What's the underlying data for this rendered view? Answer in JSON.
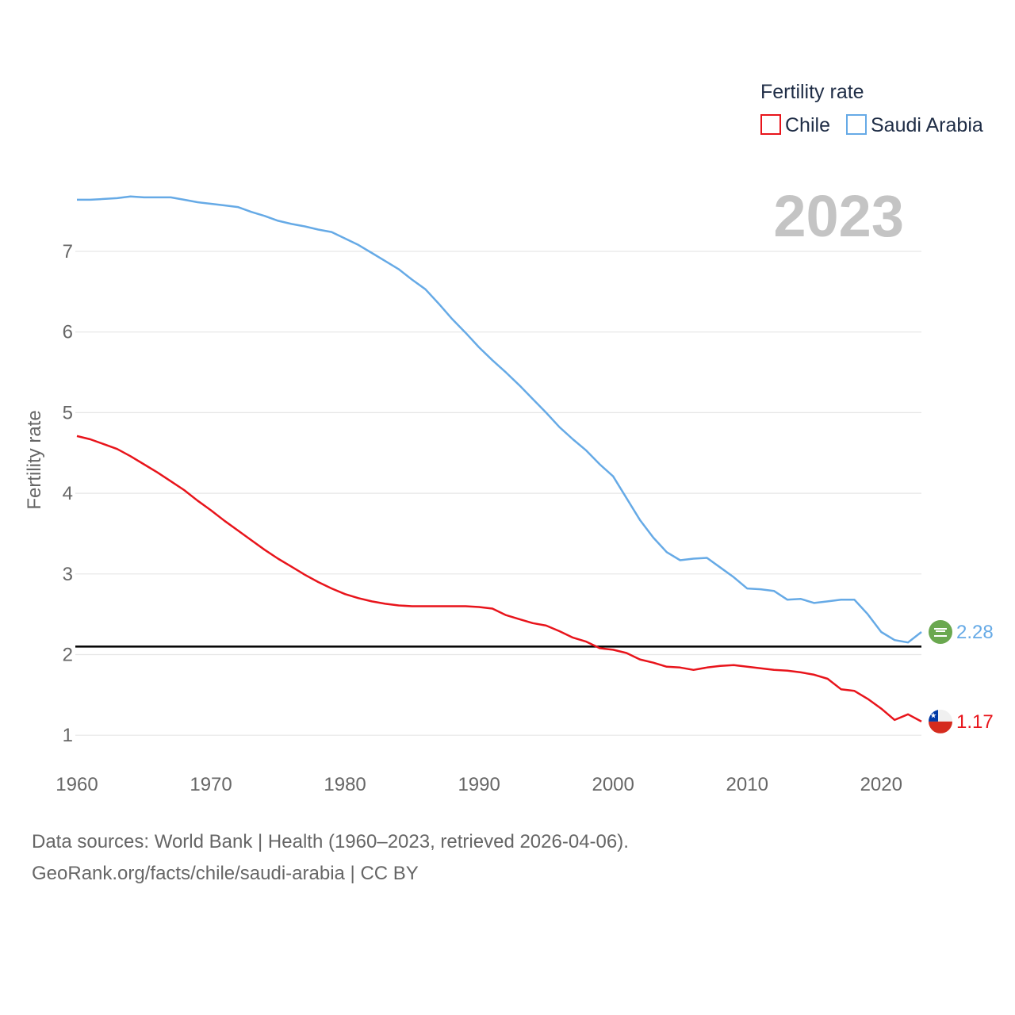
{
  "chart_data": {
    "type": "line",
    "year_label": "2023",
    "ylabel": "Fertility rate",
    "legend_title": "Fertility rate",
    "legend_position": "top-right",
    "xlim": [
      1960,
      2023
    ],
    "ylim": [
      0.6,
      8.0
    ],
    "x_ticks": [
      1960,
      1970,
      1980,
      1990,
      2000,
      2010,
      2020
    ],
    "y_ticks": [
      1,
      2,
      3,
      4,
      5,
      6,
      7
    ],
    "grid": true,
    "reference_line": 2.1,
    "x": [
      1960,
      1961,
      1962,
      1963,
      1964,
      1965,
      1966,
      1967,
      1968,
      1969,
      1970,
      1971,
      1972,
      1973,
      1974,
      1975,
      1976,
      1977,
      1978,
      1979,
      1980,
      1981,
      1982,
      1983,
      1984,
      1985,
      1986,
      1987,
      1988,
      1989,
      1990,
      1991,
      1992,
      1993,
      1994,
      1995,
      1996,
      1997,
      1998,
      1999,
      2000,
      2001,
      2002,
      2003,
      2004,
      2005,
      2006,
      2007,
      2008,
      2009,
      2010,
      2011,
      2012,
      2013,
      2014,
      2015,
      2016,
      2017,
      2018,
      2019,
      2020,
      2021,
      2022,
      2023
    ],
    "series": [
      {
        "name": "Chile",
        "color": "#e8141b",
        "end_value": "1.17",
        "values": [
          4.71,
          4.67,
          4.61,
          4.55,
          4.46,
          4.36,
          4.26,
          4.15,
          4.04,
          3.91,
          3.79,
          3.66,
          3.54,
          3.42,
          3.3,
          3.19,
          3.09,
          2.99,
          2.9,
          2.82,
          2.75,
          2.7,
          2.66,
          2.63,
          2.61,
          2.6,
          2.6,
          2.6,
          2.6,
          2.6,
          2.59,
          2.57,
          2.49,
          2.44,
          2.39,
          2.36,
          2.29,
          2.21,
          2.16,
          2.08,
          2.06,
          2.02,
          1.94,
          1.9,
          1.85,
          1.84,
          1.81,
          1.84,
          1.86,
          1.87,
          1.85,
          1.83,
          1.81,
          1.8,
          1.78,
          1.75,
          1.7,
          1.57,
          1.55,
          1.45,
          1.33,
          1.19,
          1.26,
          1.17
        ]
      },
      {
        "name": "Saudi Arabia",
        "color": "#66aae6",
        "end_value": "2.28",
        "values": [
          7.64,
          7.64,
          7.65,
          7.66,
          7.68,
          7.67,
          7.67,
          7.67,
          7.64,
          7.61,
          7.59,
          7.57,
          7.55,
          7.49,
          7.44,
          7.38,
          7.34,
          7.31,
          7.27,
          7.24,
          7.16,
          7.08,
          6.98,
          6.88,
          6.78,
          6.65,
          6.53,
          6.35,
          6.16,
          5.99,
          5.81,
          5.65,
          5.5,
          5.34,
          5.17,
          5.0,
          4.82,
          4.67,
          4.53,
          4.36,
          4.21,
          3.94,
          3.67,
          3.45,
          3.27,
          3.17,
          3.19,
          3.2,
          3.08,
          2.96,
          2.82,
          2.81,
          2.79,
          2.68,
          2.69,
          2.64,
          2.66,
          2.68,
          2.68,
          2.5,
          2.28,
          2.18,
          2.15,
          2.28
        ]
      }
    ]
  },
  "footer": {
    "line1": "Data sources: World Bank | Health (1960–2023, retrieved 2026-04-06).",
    "line2": "GeoRank.org/facts/chile/saudi-arabia | CC BY"
  },
  "icons": [
    "chile-flag-icon",
    "saudi-arabia-flag-icon"
  ]
}
